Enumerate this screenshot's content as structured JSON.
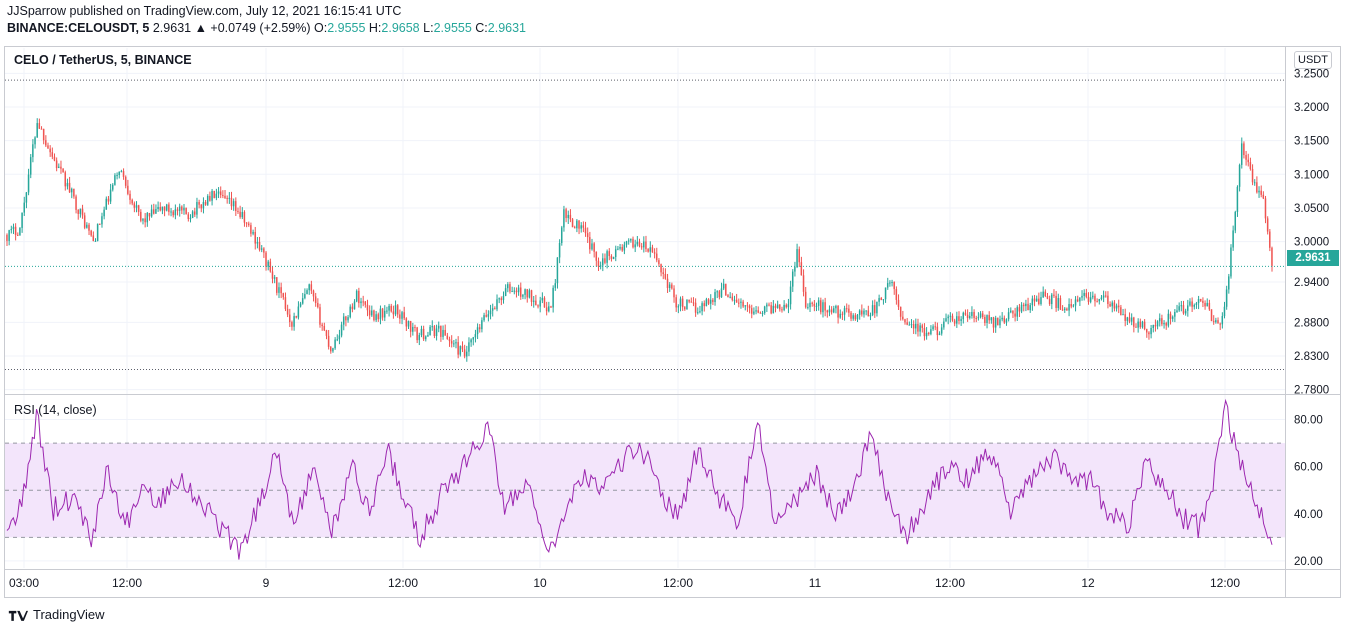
{
  "header": {
    "line1": "JJSparrow published on TradingView.com, July 12, 2021 16:15:41 UTC",
    "symbol": "BINANCE:CELOUSDT, 5",
    "last": "2.9631",
    "change": "▲ +0.0749 (+2.59%)",
    "o_label": "O:",
    "o": "2.9555",
    "h_label": "H:",
    "h": "2.9658",
    "l_label": "L:",
    "l": "2.9555",
    "c_label": "C:",
    "c": "2.9631"
  },
  "pane": {
    "title": "CELO / TetherUS, 5, BINANCE",
    "unit": "USDT",
    "last_price_badge": "2.9631",
    "rsi_title": "RSI (14, close)"
  },
  "footer": {
    "logo_text": "TradingView"
  },
  "colors": {
    "up": "#26a69a",
    "down": "#ef5350",
    "rsi_line": "#9c27b0",
    "rsi_band": "#f3e5fb",
    "grid": "#f0f3fa"
  },
  "chart_data": [
    {
      "type": "candlestick",
      "title": "CELO / TetherUS, 5, BINANCE",
      "ylabel": "USDT",
      "ylim": [
        2.775,
        3.255
      ],
      "y_ticks": [
        "3.2500",
        "3.2000",
        "3.1500",
        "3.1000",
        "3.0500",
        "3.0000",
        "2.9400",
        "2.8800",
        "2.8300",
        "2.7800"
      ],
      "x_ticks": [
        "03:00",
        "12:00",
        "9",
        "12:00",
        "10",
        "12:00",
        "11",
        "12:00",
        "12",
        "12:00"
      ],
      "last": 2.9631,
      "high_line": 3.24,
      "low_line": 2.81,
      "close_approx": [
        [
          0,
          3.01
        ],
        [
          6,
          3.02
        ],
        [
          14,
          3.18
        ],
        [
          22,
          3.12
        ],
        [
          30,
          3.07
        ],
        [
          40,
          3.0
        ],
        [
          52,
          3.11
        ],
        [
          62,
          3.03
        ],
        [
          72,
          3.05
        ],
        [
          84,
          3.04
        ],
        [
          96,
          3.07
        ],
        [
          106,
          3.05
        ],
        [
          116,
          3.0
        ],
        [
          124,
          2.94
        ],
        [
          132,
          2.88
        ],
        [
          140,
          2.93
        ],
        [
          150,
          2.84
        ],
        [
          162,
          2.92
        ],
        [
          170,
          2.89
        ],
        [
          180,
          2.9
        ],
        [
          190,
          2.86
        ],
        [
          200,
          2.87
        ],
        [
          212,
          2.83
        ],
        [
          222,
          2.89
        ],
        [
          232,
          2.93
        ],
        [
          242,
          2.92
        ],
        [
          252,
          2.9
        ],
        [
          258,
          3.04
        ],
        [
          266,
          3.02
        ],
        [
          274,
          2.97
        ],
        [
          284,
          2.99
        ],
        [
          292,
          3.0
        ],
        [
          300,
          2.98
        ],
        [
          310,
          2.91
        ],
        [
          320,
          2.9
        ],
        [
          332,
          2.93
        ],
        [
          342,
          2.9
        ],
        [
          352,
          2.9
        ],
        [
          362,
          2.91
        ],
        [
          366,
          2.99
        ],
        [
          370,
          2.91
        ],
        [
          380,
          2.9
        ],
        [
          392,
          2.89
        ],
        [
          402,
          2.9
        ],
        [
          410,
          2.94
        ],
        [
          414,
          2.89
        ],
        [
          426,
          2.86
        ],
        [
          436,
          2.88
        ],
        [
          446,
          2.89
        ],
        [
          458,
          2.88
        ],
        [
          470,
          2.9
        ],
        [
          480,
          2.92
        ],
        [
          492,
          2.9
        ],
        [
          500,
          2.92
        ],
        [
          510,
          2.91
        ],
        [
          520,
          2.88
        ],
        [
          530,
          2.87
        ],
        [
          540,
          2.89
        ],
        [
          550,
          2.91
        ],
        [
          556,
          2.9
        ],
        [
          562,
          2.87
        ],
        [
          566,
          2.95
        ],
        [
          572,
          3.15
        ],
        [
          576,
          3.1
        ],
        [
          582,
          3.06
        ],
        [
          586,
          2.96
        ]
      ]
    },
    {
      "type": "line",
      "title": "RSI (14, close)",
      "ylim": [
        17,
        90
      ],
      "y_ticks": [
        "80.00",
        "60.00",
        "40.00",
        "20.00"
      ],
      "band": [
        30,
        70
      ],
      "midline": 50,
      "values_approx": [
        [
          0,
          30
        ],
        [
          8,
          48
        ],
        [
          14,
          82
        ],
        [
          22,
          42
        ],
        [
          32,
          48
        ],
        [
          40,
          30
        ],
        [
          48,
          60
        ],
        [
          56,
          34
        ],
        [
          64,
          52
        ],
        [
          72,
          45
        ],
        [
          80,
          56
        ],
        [
          90,
          48
        ],
        [
          100,
          36
        ],
        [
          110,
          24
        ],
        [
          120,
          45
        ],
        [
          128,
          68
        ],
        [
          136,
          35
        ],
        [
          146,
          60
        ],
        [
          154,
          32
        ],
        [
          164,
          60
        ],
        [
          172,
          40
        ],
        [
          180,
          68
        ],
        [
          188,
          46
        ],
        [
          196,
          30
        ],
        [
          206,
          48
        ],
        [
          218,
          62
        ],
        [
          228,
          78
        ],
        [
          236,
          42
        ],
        [
          246,
          55
        ],
        [
          256,
          22
        ],
        [
          264,
          36
        ],
        [
          272,
          56
        ],
        [
          282,
          48
        ],
        [
          292,
          62
        ],
        [
          300,
          70
        ],
        [
          310,
          50
        ],
        [
          318,
          38
        ],
        [
          328,
          68
        ],
        [
          336,
          50
        ],
        [
          346,
          34
        ],
        [
          356,
          78
        ],
        [
          364,
          38
        ],
        [
          376,
          48
        ],
        [
          384,
          58
        ],
        [
          392,
          40
        ],
        [
          402,
          52
        ],
        [
          410,
          76
        ],
        [
          418,
          46
        ],
        [
          426,
          30
        ],
        [
          436,
          46
        ],
        [
          446,
          60
        ],
        [
          456,
          54
        ],
        [
          466,
          68
        ],
        [
          476,
          40
        ],
        [
          486,
          56
        ],
        [
          496,
          64
        ],
        [
          506,
          52
        ],
        [
          514,
          56
        ],
        [
          522,
          40
        ],
        [
          532,
          34
        ],
        [
          540,
          62
        ],
        [
          550,
          50
        ],
        [
          558,
          38
        ],
        [
          566,
          34
        ],
        [
          572,
          54
        ],
        [
          578,
          86
        ],
        [
          584,
          62
        ],
        [
          590,
          52
        ],
        [
          596,
          38
        ],
        [
          600,
          28
        ]
      ]
    }
  ]
}
